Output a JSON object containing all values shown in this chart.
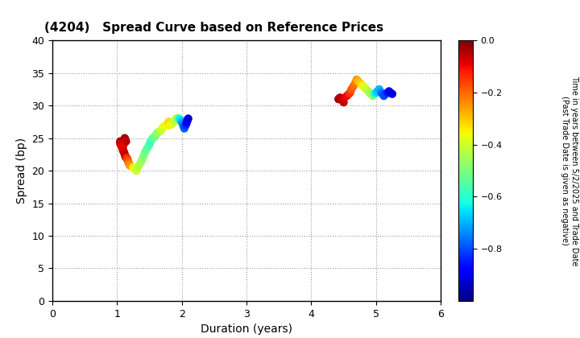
{
  "title": "(4204)   Spread Curve based on Reference Prices",
  "xlabel": "Duration (years)",
  "ylabel": "Spread (bp)",
  "colorbar_label_line1": "Time in years between 5/2/2025 and Trade Date",
  "colorbar_label_line2": "(Past Trade Date is given as negative)",
  "xlim": [
    0,
    6
  ],
  "ylim": [
    0,
    40
  ],
  "xticks": [
    0,
    1,
    2,
    3,
    4,
    5,
    6
  ],
  "yticks": [
    0,
    5,
    10,
    15,
    20,
    25,
    30,
    35,
    40
  ],
  "colorbar_min": -1.0,
  "colorbar_max": 0.0,
  "colorbar_ticks": [
    0.0,
    -0.2,
    -0.4,
    -0.6,
    -0.8
  ],
  "cluster1": {
    "duration": [
      1.05,
      1.06,
      1.07,
      1.08,
      1.09,
      1.1,
      1.11,
      1.12,
      1.13,
      1.14,
      1.05,
      1.06,
      1.07,
      1.08,
      1.09,
      1.1,
      1.11,
      1.12,
      1.13,
      1.14,
      1.15,
      1.16,
      1.17,
      1.18,
      1.19,
      1.2,
      1.25,
      1.28,
      1.3,
      1.32,
      1.35,
      1.38,
      1.4,
      1.42,
      1.44,
      1.47,
      1.5,
      1.52,
      1.55,
      1.58,
      1.6,
      1.62,
      1.65,
      1.68,
      1.7,
      1.72,
      1.75,
      1.78,
      1.8,
      1.82,
      1.85,
      1.88,
      1.9,
      1.92,
      1.94,
      1.96,
      1.98,
      2.0,
      2.0,
      2.01,
      2.02,
      2.03,
      2.04,
      2.05,
      2.06,
      2.07,
      2.08,
      2.09,
      2.1
    ],
    "spread": [
      24.5,
      24.3,
      24.0,
      23.8,
      23.5,
      24.0,
      24.5,
      25.0,
      24.8,
      24.5,
      24.2,
      24.0,
      23.8,
      23.5,
      23.2,
      23.0,
      22.8,
      22.5,
      22.2,
      22.0,
      22.0,
      21.8,
      21.5,
      21.2,
      21.0,
      20.8,
      20.5,
      20.2,
      20.0,
      20.5,
      21.0,
      21.5,
      22.0,
      22.5,
      23.0,
      23.5,
      24.0,
      24.5,
      25.0,
      25.2,
      25.5,
      25.8,
      26.0,
      26.2,
      26.5,
      26.8,
      27.0,
      27.2,
      27.5,
      27.0,
      27.2,
      27.5,
      27.8,
      28.0,
      28.1,
      28.0,
      27.8,
      27.5,
      27.5,
      27.3,
      27.0,
      26.8,
      26.5,
      26.8,
      27.0,
      27.2,
      27.5,
      27.8,
      28.0
    ],
    "color_values": [
      -0.03,
      -0.04,
      -0.05,
      -0.06,
      -0.07,
      -0.05,
      -0.04,
      -0.03,
      -0.04,
      -0.05,
      -0.06,
      -0.07,
      -0.08,
      -0.09,
      -0.1,
      -0.08,
      -0.07,
      -0.06,
      -0.05,
      -0.04,
      -0.12,
      -0.15,
      -0.18,
      -0.2,
      -0.22,
      -0.25,
      -0.35,
      -0.38,
      -0.4,
      -0.42,
      -0.44,
      -0.46,
      -0.48,
      -0.5,
      -0.52,
      -0.54,
      -0.56,
      -0.58,
      -0.55,
      -0.52,
      -0.5,
      -0.48,
      -0.45,
      -0.42,
      -0.4,
      -0.38,
      -0.36,
      -0.34,
      -0.32,
      -0.35,
      -0.38,
      -0.4,
      -0.42,
      -0.44,
      -0.46,
      -0.6,
      -0.65,
      -0.68,
      -0.7,
      -0.72,
      -0.74,
      -0.76,
      -0.78,
      -0.8,
      -0.82,
      -0.85,
      -0.88,
      -0.9,
      -0.92
    ]
  },
  "cluster2": {
    "duration": [
      4.42,
      4.44,
      4.46,
      4.48,
      4.5,
      4.45,
      4.47,
      4.49,
      4.51,
      4.55,
      4.58,
      4.6,
      4.62,
      4.65,
      4.68,
      4.7,
      4.72,
      4.75,
      4.78,
      4.8,
      4.82,
      4.85,
      4.88,
      4.9,
      4.92,
      4.95,
      4.98,
      5.0,
      5.02,
      5.05,
      5.08,
      5.1,
      5.12,
      5.15,
      5.18,
      5.2,
      5.22,
      5.25
    ],
    "spread": [
      31.0,
      31.2,
      31.0,
      30.8,
      30.5,
      31.2,
      31.0,
      30.8,
      31.2,
      31.5,
      31.8,
      32.0,
      32.5,
      33.0,
      33.5,
      34.0,
      33.8,
      33.5,
      33.2,
      33.0,
      32.8,
      32.5,
      32.2,
      32.0,
      31.8,
      31.5,
      31.8,
      32.0,
      32.2,
      32.5,
      32.0,
      31.8,
      31.5,
      31.8,
      32.0,
      32.2,
      32.0,
      31.8
    ],
    "color_values": [
      -0.03,
      -0.04,
      -0.05,
      -0.06,
      -0.07,
      -0.04,
      -0.05,
      -0.06,
      -0.08,
      -0.1,
      -0.12,
      -0.15,
      -0.18,
      -0.2,
      -0.22,
      -0.25,
      -0.28,
      -0.3,
      -0.32,
      -0.35,
      -0.38,
      -0.4,
      -0.42,
      -0.44,
      -0.46,
      -0.48,
      -0.6,
      -0.65,
      -0.68,
      -0.7,
      -0.75,
      -0.78,
      -0.8,
      -0.82,
      -0.85,
      -0.88,
      -0.9,
      -0.92
    ]
  },
  "marker_size": 55,
  "marker_alpha": 1.0
}
